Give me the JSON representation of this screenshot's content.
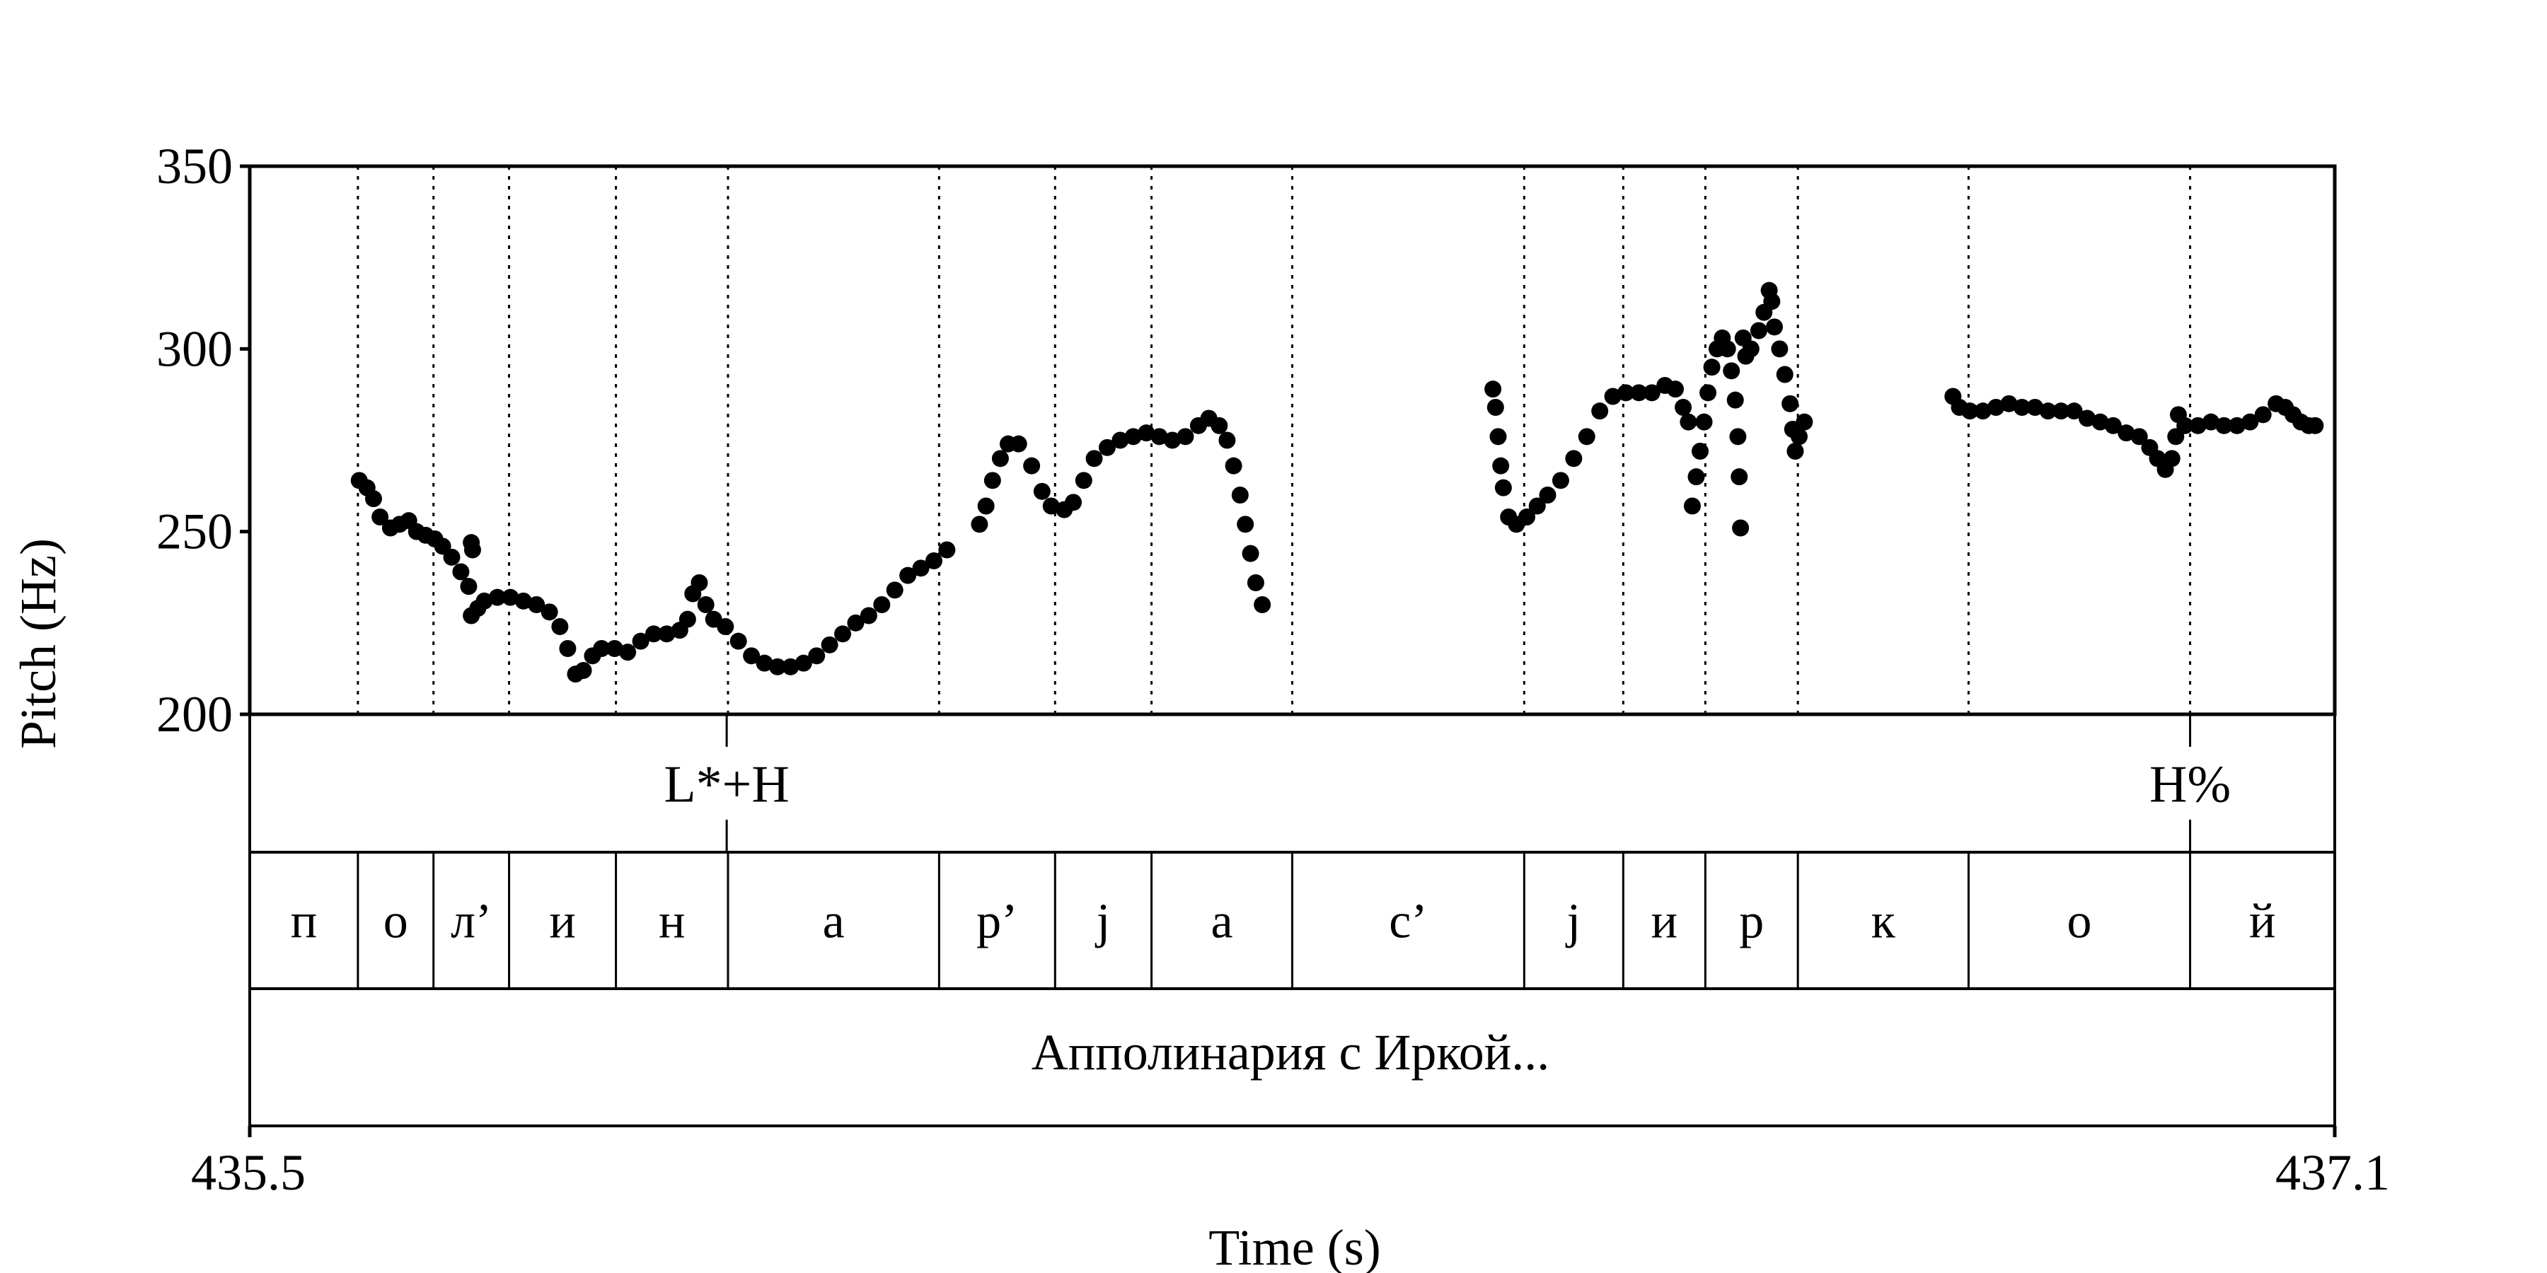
{
  "chart_data": {
    "type": "scatter",
    "xlabel": "Time (s)",
    "ylabel": "Pitch (Hz)",
    "xlim": [
      435.5,
      437.1
    ],
    "ylim": [
      200,
      350
    ],
    "x_tick_labels": [
      "435.5",
      "437.1"
    ],
    "y_ticks": [
      200,
      250,
      300,
      350
    ],
    "y_tick_labels": [
      "200",
      "250",
      "300",
      "350"
    ],
    "grid": "dotted vertical lines at segment boundaries",
    "marker_color": "#000000",
    "pitch_contours": [
      [
        [
          435.584,
          264
        ],
        [
          435.59,
          262
        ],
        [
          435.595,
          259
        ],
        [
          435.6,
          254
        ],
        [
          435.608,
          251
        ],
        [
          435.615,
          252
        ],
        [
          435.622,
          253
        ],
        [
          435.628,
          250
        ],
        [
          435.635,
          249
        ],
        [
          435.642,
          248
        ],
        [
          435.648,
          246
        ],
        [
          435.655,
          243
        ],
        [
          435.662,
          239
        ],
        [
          435.668,
          235
        ]
      ],
      [
        [
          435.67,
          247
        ],
        [
          435.671,
          245
        ]
      ],
      [
        [
          435.67,
          227
        ],
        [
          435.675,
          229
        ],
        [
          435.68,
          231
        ],
        [
          435.69,
          232
        ],
        [
          435.7,
          232
        ],
        [
          435.71,
          231
        ],
        [
          435.72,
          230
        ],
        [
          435.73,
          228
        ],
        [
          435.738,
          224
        ],
        [
          435.744,
          218
        ],
        [
          435.75,
          211
        ],
        [
          435.756,
          212
        ],
        [
          435.763,
          216
        ],
        [
          435.77,
          218
        ],
        [
          435.78,
          218
        ],
        [
          435.79,
          217
        ],
        [
          435.8,
          220
        ],
        [
          435.81,
          222
        ],
        [
          435.82,
          222
        ],
        [
          435.83,
          223
        ],
        [
          435.836,
          226
        ],
        [
          435.84,
          233
        ],
        [
          435.845,
          236
        ],
        [
          435.85,
          230
        ],
        [
          435.856,
          226
        ],
        [
          435.865,
          224
        ],
        [
          435.875,
          220
        ],
        [
          435.885,
          216
        ],
        [
          435.895,
          214
        ],
        [
          435.905,
          213
        ],
        [
          435.915,
          213
        ],
        [
          435.925,
          214
        ],
        [
          435.935,
          216
        ],
        [
          435.945,
          219
        ],
        [
          435.955,
          222
        ],
        [
          435.965,
          225
        ],
        [
          435.975,
          227
        ],
        [
          435.985,
          230
        ],
        [
          435.995,
          234
        ],
        [
          436.005,
          238
        ],
        [
          436.015,
          240
        ],
        [
          436.025,
          242
        ],
        [
          436.035,
          245
        ]
      ],
      [
        [
          436.06,
          252
        ],
        [
          436.065,
          257
        ],
        [
          436.07,
          264
        ],
        [
          436.076,
          270
        ],
        [
          436.082,
          274
        ],
        [
          436.09,
          274
        ],
        [
          436.1,
          268
        ],
        [
          436.108,
          261
        ],
        [
          436.115,
          257
        ],
        [
          436.125,
          256
        ],
        [
          436.132,
          258
        ],
        [
          436.14,
          264
        ],
        [
          436.148,
          270
        ],
        [
          436.158,
          273
        ],
        [
          436.168,
          275
        ],
        [
          436.178,
          276
        ],
        [
          436.188,
          277
        ],
        [
          436.198,
          276
        ],
        [
          436.208,
          275
        ],
        [
          436.218,
          276
        ],
        [
          436.228,
          279
        ],
        [
          436.236,
          281
        ],
        [
          436.244,
          279
        ],
        [
          436.25,
          275
        ],
        [
          436.255,
          268
        ],
        [
          436.26,
          260
        ],
        [
          436.264,
          252
        ],
        [
          436.268,
          244
        ],
        [
          436.272,
          236
        ],
        [
          436.277,
          230
        ]
      ],
      [
        [
          436.454,
          289
        ],
        [
          436.456,
          284
        ],
        [
          436.458,
          276
        ],
        [
          436.46,
          268
        ],
        [
          436.462,
          262
        ],
        [
          436.466,
          254
        ],
        [
          436.472,
          252
        ],
        [
          436.48,
          254
        ],
        [
          436.488,
          257
        ],
        [
          436.496,
          260
        ],
        [
          436.506,
          264
        ],
        [
          436.516,
          270
        ],
        [
          436.526,
          276
        ],
        [
          436.536,
          283
        ],
        [
          436.546,
          287
        ],
        [
          436.556,
          288
        ],
        [
          436.566,
          288
        ],
        [
          436.576,
          288
        ],
        [
          436.586,
          290
        ],
        [
          436.594,
          289
        ],
        [
          436.6,
          284
        ],
        [
          436.604,
          280
        ]
      ],
      [
        [
          436.607,
          257
        ],
        [
          436.61,
          265
        ],
        [
          436.613,
          272
        ],
        [
          436.616,
          280
        ],
        [
          436.619,
          288
        ],
        [
          436.622,
          295
        ],
        [
          436.626,
          300
        ],
        [
          436.63,
          303
        ],
        [
          436.634,
          300
        ],
        [
          436.637,
          294
        ],
        [
          436.64,
          286
        ],
        [
          436.642,
          276
        ],
        [
          436.643,
          265
        ],
        [
          436.644,
          251
        ],
        [
          436.646,
          303
        ],
        [
          436.648,
          298
        ],
        [
          436.652,
          300
        ],
        [
          436.658,
          305
        ],
        [
          436.662,
          310
        ],
        [
          436.666,
          316
        ],
        [
          436.668,
          313
        ],
        [
          436.67,
          306
        ],
        [
          436.674,
          300
        ],
        [
          436.678,
          293
        ],
        [
          436.682,
          285
        ],
        [
          436.684,
          278
        ],
        [
          436.686,
          272
        ],
        [
          436.689,
          276
        ],
        [
          436.693,
          280
        ]
      ],
      [
        [
          436.807,
          287
        ],
        [
          436.812,
          284
        ],
        [
          436.82,
          283
        ],
        [
          436.83,
          283
        ],
        [
          436.84,
          284
        ],
        [
          436.85,
          285
        ],
        [
          436.86,
          284
        ],
        [
          436.87,
          284
        ],
        [
          436.88,
          283
        ],
        [
          436.89,
          283
        ],
        [
          436.9,
          283
        ],
        [
          436.91,
          281
        ],
        [
          436.92,
          280
        ],
        [
          436.93,
          279
        ],
        [
          436.94,
          277
        ],
        [
          436.95,
          276
        ],
        [
          436.958,
          273
        ],
        [
          436.964,
          270
        ],
        [
          436.97,
          267
        ],
        [
          436.975,
          270
        ],
        [
          436.978,
          276
        ],
        [
          436.98,
          282
        ],
        [
          436.985,
          279
        ],
        [
          436.995,
          279
        ],
        [
          437.005,
          280
        ],
        [
          437.015,
          279
        ],
        [
          437.025,
          279
        ],
        [
          437.035,
          280
        ],
        [
          437.045,
          282
        ],
        [
          437.055,
          285
        ],
        [
          437.062,
          284
        ],
        [
          437.068,
          282
        ],
        [
          437.074,
          280
        ],
        [
          437.08,
          279
        ],
        [
          437.085,
          279
        ]
      ]
    ],
    "tiers": {
      "tones": [
        {
          "time": 435.866,
          "label": "L*+H"
        },
        {
          "time": 436.989,
          "label": "H%"
        }
      ],
      "segment_boundaries": [
        435.583,
        435.641,
        435.699,
        435.781,
        435.867,
        436.029,
        436.118,
        436.192,
        436.3,
        436.478,
        436.554,
        436.617,
        436.688,
        436.819,
        436.989
      ],
      "segments": [
        "п",
        "о",
        "л’",
        "и",
        "н",
        "а",
        "р’",
        "j",
        "а",
        "с’",
        "j",
        "и",
        "р",
        "к",
        "о",
        "й"
      ],
      "utterance": "Апполинария с Иркой..."
    }
  }
}
